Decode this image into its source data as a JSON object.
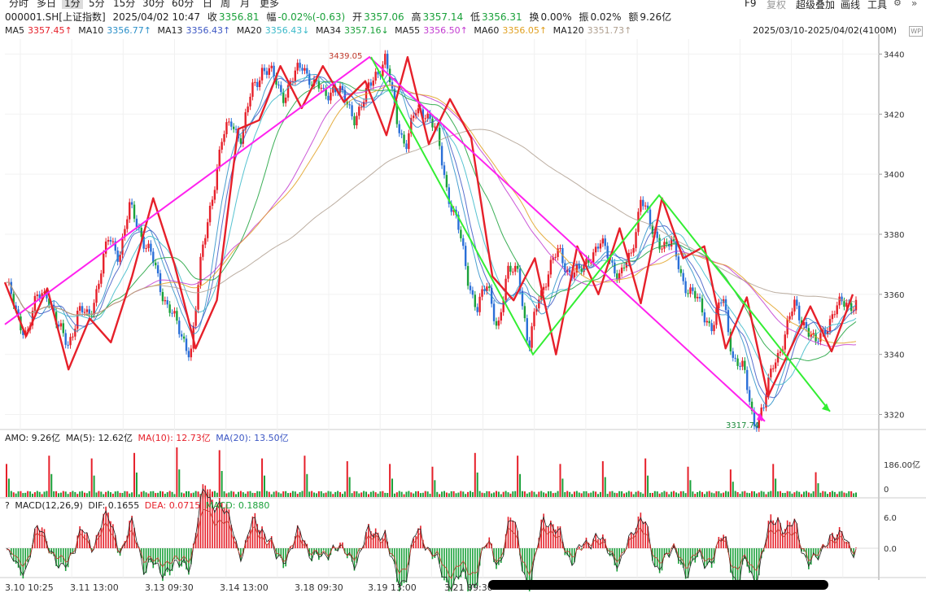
{
  "toolbar": {
    "periods": [
      "分时",
      "多日",
      "1分",
      "5分",
      "15分",
      "30分",
      "60分",
      "日",
      "周",
      "月",
      "更多"
    ],
    "active": "1分",
    "right": [
      "F9",
      "复权",
      "超级叠加",
      "画线",
      "工具"
    ]
  },
  "info": {
    "symbol": "000001.SH[上证指数]",
    "datetime": "2025/04/02 10:47",
    "close_label": "收",
    "close": "3356.81",
    "chg_label": "幅",
    "chg": "-0.02%(-0.63)",
    "open_label": "开",
    "open": "3357.06",
    "high_label": "高",
    "high": "3357.14",
    "low_label": "低",
    "low": "3356.31",
    "turnover_label": "换",
    "turnover": "0.00%",
    "amp_label": "振",
    "amp": "0.02%",
    "amount_label": "额",
    "amount": "9.26亿"
  },
  "ma": [
    {
      "label": "MA5",
      "value": "3357.45↑",
      "color": "#e6202a"
    },
    {
      "label": "MA10",
      "value": "3356.77↑",
      "color": "#2a8fc8"
    },
    {
      "label": "MA13",
      "value": "3356.43↑",
      "color": "#3c57c4"
    },
    {
      "label": "MA20",
      "value": "3356.43↓",
      "color": "#39b9c9"
    },
    {
      "label": "MA34",
      "value": "3357.16↓",
      "color": "#1aa13a"
    },
    {
      "label": "MA55",
      "value": "3356.50↑",
      "color": "#c23ad0"
    },
    {
      "label": "MA60",
      "value": "3356.05↑",
      "color": "#e0a020"
    },
    {
      "label": "MA120",
      "value": "3351.73↑",
      "color": "#b0a090"
    }
  ],
  "range_label": "2025/03/10-2025/04/02(4100M)",
  "ws_badge": "WP",
  "price_axis": {
    "ticks": [
      "3440",
      "3420",
      "3400",
      "3380",
      "3360",
      "3340",
      "3320"
    ]
  },
  "annotations": {
    "high": "3439.05",
    "low": "3317.74"
  },
  "amo": {
    "label": "AMO: 9.26亿",
    "ma5": "MA(5): 12.62亿",
    "ma10": "MA(10): 12.73亿",
    "ma20": "MA(20): 13.50亿",
    "ticks": [
      "186.00亿",
      "0"
    ]
  },
  "macd": {
    "q": "?",
    "label": "MACD(12,26,9)",
    "dif": "DIF: 0.1655",
    "dea": "DEA: 0.0715",
    "macd": "MACD: 0.1880",
    "ticks": [
      "6.0",
      "0.0"
    ]
  },
  "x_labels": [
    "3.10 10:25",
    "3.11 13:00",
    "3.13 09:30",
    "3.14 13:00",
    "3.18 09:30",
    "3.19 13:00",
    "3.21 09:30"
  ],
  "chart_data": {
    "type": "line",
    "title": "000001.SH[上证指数] 1分",
    "x_range": [
      "2025/03/10",
      "2025/04/02"
    ],
    "ylim": [
      3315,
      3445
    ],
    "y_ticks": [
      3440,
      3420,
      3400,
      3380,
      3360,
      3340,
      3320
    ],
    "price_path": [
      3364,
      3352,
      3348,
      3358,
      3362,
      3348,
      3344,
      3354,
      3352,
      3365,
      3378,
      3374,
      3388,
      3382,
      3374,
      3362,
      3356,
      3345,
      3342,
      3370,
      3392,
      3410,
      3418,
      3412,
      3428,
      3436,
      3432,
      3427,
      3431,
      3437,
      3430,
      3426,
      3430,
      3424,
      3420,
      3424,
      3434,
      3438,
      3420,
      3410,
      3420,
      3422,
      3413,
      3396,
      3384,
      3366,
      3356,
      3362,
      3350,
      3366,
      3370,
      3340,
      3360,
      3368,
      3374,
      3368,
      3366,
      3374,
      3376,
      3372,
      3366,
      3372,
      3394,
      3380,
      3378,
      3376,
      3366,
      3360,
      3354,
      3350,
      3358,
      3340,
      3334,
      3318,
      3322,
      3338,
      3346,
      3356,
      3351,
      3342,
      3350,
      3354,
      3358,
      3357
    ],
    "series_lines": [
      {
        "color": "#e6202a",
        "y": [
          3364,
          3346,
          3362,
          3335,
          3352,
          3344,
          3366,
          3392,
          3370,
          3342,
          3358,
          3415,
          3418,
          3436,
          3422,
          3436,
          3424,
          3431,
          3413,
          3439,
          3410,
          3425,
          3412,
          3366,
          3358,
          3372,
          3340,
          3376,
          3360,
          3382,
          3357,
          3392,
          3372,
          3376,
          3342,
          3359,
          3326,
          3341,
          3356,
          3341,
          3360
        ]
      },
      {
        "color": "#ff22ee",
        "y": [
          3350,
          3439,
          3317.74
        ]
      },
      {
        "color": "#33ee33",
        "y": [
          3439,
          3340,
          3393,
          3321
        ]
      }
    ],
    "volume_peaks": [
      120,
      150,
      140,
      160,
      180,
      170,
      140,
      150,
      130,
      120,
      110,
      160,
      150,
      120,
      130,
      140,
      110,
      100,
      120,
      90
    ],
    "amo_ylim": [
      0,
      186
    ],
    "macd_ylim": [
      -8,
      8
    ]
  }
}
